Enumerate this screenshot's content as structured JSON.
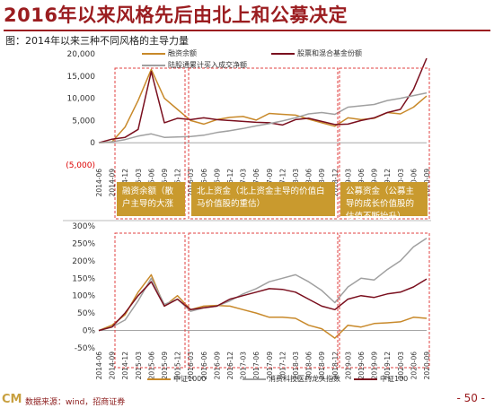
{
  "page": {
    "title": "2016年以来风格先后由北上和公募决定",
    "subtitle": "图：2014年以来三种不同风格的主导力量",
    "page_number": "- 50 -",
    "footer_logo": "CM",
    "footer_source": "数据来源：wind，招商证券"
  },
  "colors": {
    "brand": "#9b1d20",
    "margin_balance": "#c8892a",
    "fund_share": "#7a0f1e",
    "northbound": "#a0a0a0",
    "callout": "#c99a2e",
    "box": "#e04040"
  },
  "callouts": [
    "融资余额（散户主导的大涨",
    "北上资金（北上资金主导的价值白马价值股的重估）",
    "公募资金（公募主导的成长价值股的估值不断抬升）"
  ],
  "chart_data": [
    {
      "type": "line",
      "categories": [
        "2014-06",
        "2014-09",
        "2014-12",
        "2015-03",
        "2015-06",
        "2015-09",
        "2015-12",
        "2016-03",
        "2016-06",
        "2016-09",
        "2016-12",
        "2017-03",
        "2017-06",
        "2017-09",
        "2017-12",
        "2018-03",
        "2018-06",
        "2018-09",
        "2018-12",
        "2019-03",
        "2019-06",
        "2019-09",
        "2019-12",
        "2020-03",
        "2020-06",
        "2020-09"
      ],
      "ylim": [
        -5000,
        20000
      ],
      "yticks": [
        "20,000",
        "15,000",
        "10,000",
        "5,000",
        "0",
        "(5,000)"
      ],
      "series": [
        {
          "name": "融资余额",
          "values": [
            0,
            200,
            3500,
            9500,
            16500,
            10000,
            7500,
            5000,
            4200,
            5200,
            5700,
            5900,
            5100,
            6600,
            6400,
            6200,
            5300,
            4500,
            3700,
            5600,
            5200,
            5500,
            6800,
            6500,
            8000,
            10500
          ]
        },
        {
          "name": "股票和混合基金份额",
          "values": [
            0,
            800,
            1200,
            3000,
            16000,
            4500,
            5500,
            5200,
            5600,
            5200,
            5000,
            4800,
            4600,
            4500,
            4000,
            5200,
            5500,
            4800,
            4100,
            4200,
            5000,
            5600,
            6800,
            7500,
            12000,
            19000
          ]
        },
        {
          "name": "陆股通累计买入成交净额",
          "values": [
            0,
            200,
            700,
            1500,
            2000,
            1200,
            1300,
            1400,
            1700,
            2300,
            2700,
            3200,
            3800,
            4300,
            4900,
            5600,
            6500,
            6800,
            6400,
            8000,
            8300,
            8600,
            9500,
            10000,
            10600,
            11200
          ]
        }
      ]
    },
    {
      "type": "line",
      "categories": [
        "2014-06",
        "2014-09",
        "2014-12",
        "2015-03",
        "2015-06",
        "2015-09",
        "2015-12",
        "2016-03",
        "2016-06",
        "2016-09",
        "2016-12",
        "2017-03",
        "2017-06",
        "2017-09",
        "2017-12",
        "2018-03",
        "2018-06",
        "2018-09",
        "2018-12",
        "2019-03",
        "2019-06",
        "2019-09",
        "2019-12",
        "2020-03",
        "2020-06",
        "2020-09"
      ],
      "ylim": [
        -50,
        300
      ],
      "yticks": [
        "300%",
        "250%",
        "200%",
        "150%",
        "100%",
        "50%",
        "0%",
        "-50%"
      ],
      "series": [
        {
          "name": "中证1000",
          "values": [
            0,
            15,
            45,
            110,
            160,
            70,
            100,
            60,
            70,
            72,
            70,
            60,
            50,
            38,
            38,
            35,
            15,
            5,
            -22,
            15,
            10,
            20,
            22,
            25,
            38,
            35
          ]
        },
        {
          "name": "消费科技医药龙头指数",
          "values": [
            0,
            10,
            30,
            85,
            150,
            75,
            90,
            55,
            65,
            70,
            85,
            105,
            120,
            140,
            150,
            160,
            140,
            115,
            80,
            125,
            150,
            145,
            175,
            200,
            240,
            265
          ]
        },
        {
          "name": "中证100",
          "values": [
            0,
            10,
            50,
            100,
            140,
            70,
            90,
            60,
            65,
            70,
            90,
            100,
            110,
            120,
            118,
            110,
            90,
            70,
            60,
            90,
            100,
            95,
            105,
            110,
            125,
            148
          ]
        }
      ]
    }
  ]
}
